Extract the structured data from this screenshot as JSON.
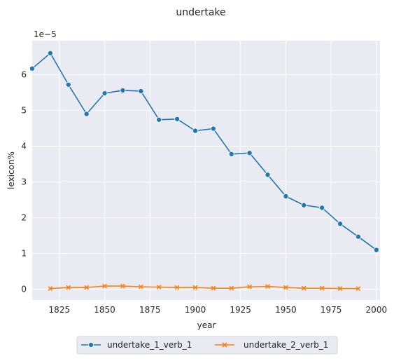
{
  "chart_data": {
    "type": "line",
    "title": "undertake",
    "xlabel": "year",
    "ylabel": "lexicon%",
    "y_offset_label": "1e−5",
    "xlim": [
      1810,
      2002
    ],
    "ylim": [
      -0.3,
      6.95
    ],
    "x_ticks": [
      1825,
      1850,
      1875,
      1900,
      1925,
      1950,
      1975,
      2000
    ],
    "y_ticks": [
      0,
      1,
      2,
      3,
      4,
      5,
      6
    ],
    "grid": true,
    "legend_position": "bottom-center",
    "background_color": "#eaeaf2",
    "series": [
      {
        "name": "undertake_1_verb_1",
        "color": "#1f77b4",
        "marker": "circle",
        "x": [
          1810,
          1820,
          1830,
          1840,
          1850,
          1860,
          1870,
          1880,
          1890,
          1900,
          1910,
          1920,
          1930,
          1940,
          1950,
          1960,
          1970,
          1980,
          1990,
          2000
        ],
        "y": [
          6.17,
          6.6,
          5.72,
          4.9,
          5.48,
          5.56,
          5.54,
          4.74,
          4.76,
          4.43,
          4.49,
          3.78,
          3.81,
          3.2,
          2.6,
          2.35,
          2.28,
          1.83,
          1.47,
          1.1
        ]
      },
      {
        "name": "undertake_2_verb_1",
        "color": "#ff7f0e",
        "marker": "x",
        "x": [
          1820,
          1830,
          1840,
          1850,
          1860,
          1870,
          1880,
          1890,
          1900,
          1910,
          1920,
          1930,
          1940,
          1950,
          1960,
          1970,
          1980,
          1990
        ],
        "y": [
          0.02,
          0.05,
          0.05,
          0.09,
          0.09,
          0.07,
          0.06,
          0.05,
          0.05,
          0.03,
          0.03,
          0.07,
          0.08,
          0.05,
          0.03,
          0.03,
          0.02,
          0.02
        ]
      }
    ]
  }
}
